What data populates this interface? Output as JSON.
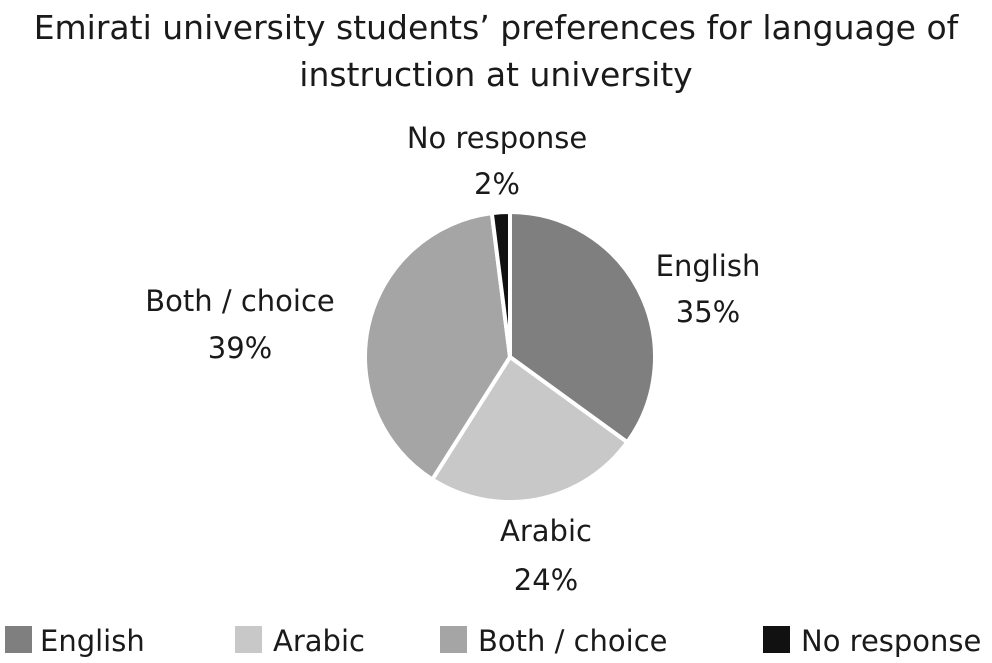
{
  "chart_data": {
    "type": "pie",
    "title_lines": [
      "Emirati university students’ preferences for language of",
      "instruction at university"
    ],
    "slices": [
      {
        "name": "English",
        "value": 35,
        "value_label": "35%",
        "color": "#7f7f7f"
      },
      {
        "name": "Arabic",
        "value": 24,
        "value_label": "24%",
        "color": "#c8c8c8"
      },
      {
        "name": "Both / choice",
        "value": 39,
        "value_label": "39%",
        "color": "#a5a5a5"
      },
      {
        "name": "No response",
        "value": 2,
        "value_label": "2%",
        "color": "#111111"
      }
    ],
    "legend": {
      "placement": "bottom",
      "entries": [
        "English",
        "Arabic",
        "Both / choice",
        "No response"
      ]
    }
  }
}
